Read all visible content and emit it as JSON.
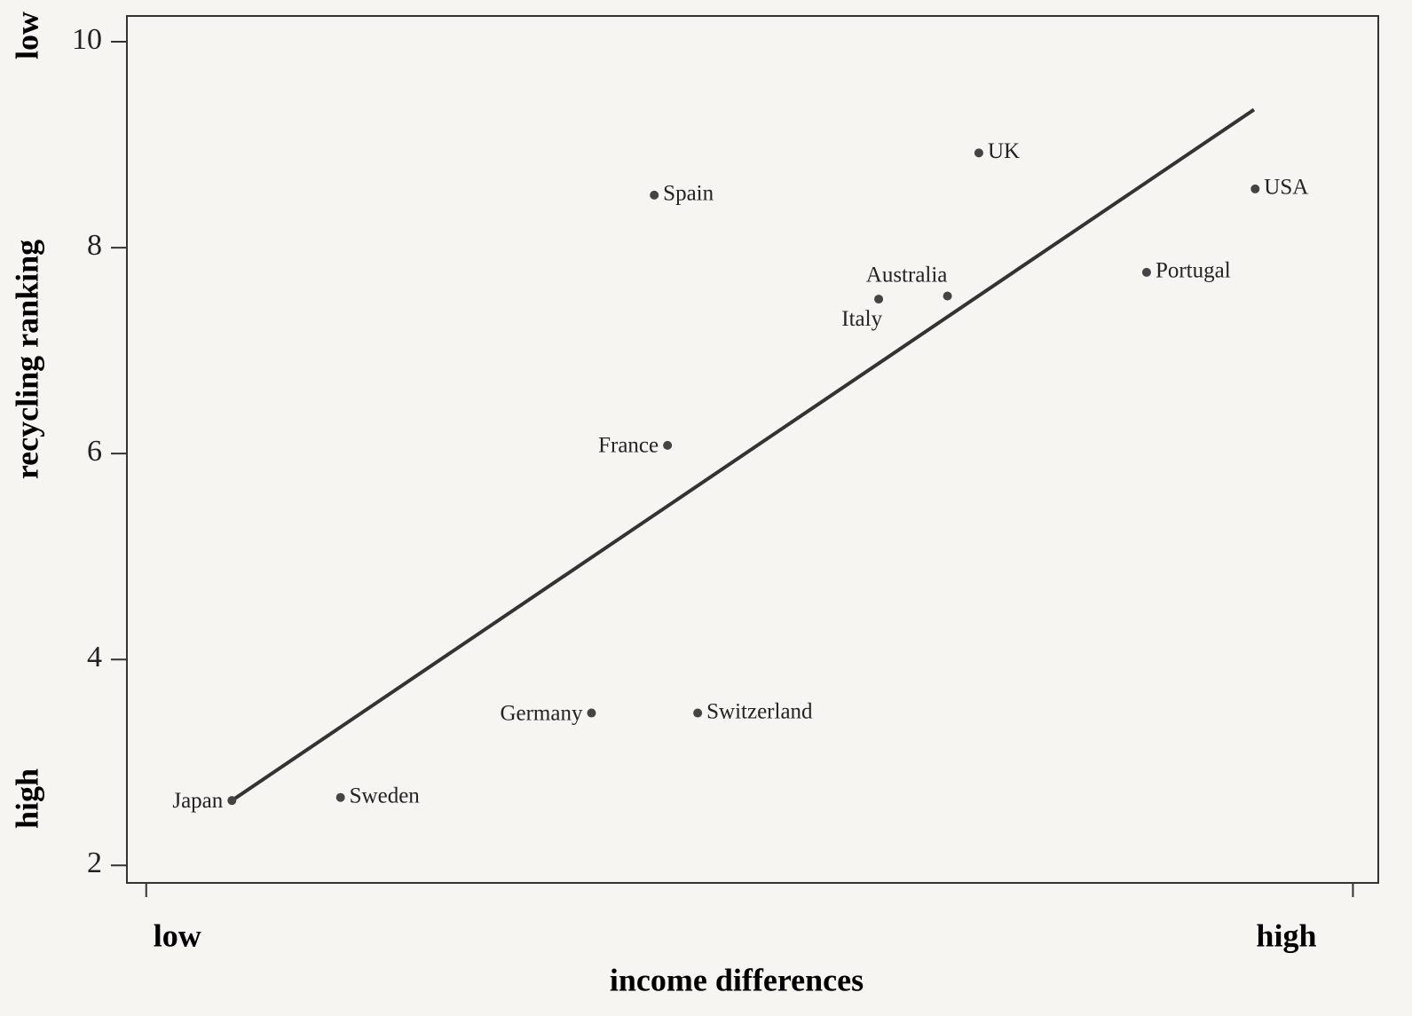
{
  "chart_data": {
    "type": "scatter",
    "x_label": "income differences",
    "y_label": "recycling ranking",
    "y_low_label": "low",
    "y_high_label": "high",
    "xlim": [
      -0.16,
      10.21
    ],
    "xticks": [
      {
        "value": 0,
        "label": "low"
      },
      {
        "value": 10,
        "label": "high"
      }
    ],
    "ylim": [
      1.83,
      10.25
    ],
    "yticks": [
      2,
      4,
      6,
      8,
      10
    ],
    "color": "#444444",
    "points": [
      {
        "label": "Japan",
        "x": 0.71,
        "y": 2.63
      },
      {
        "label": "Sweden",
        "x": 1.61,
        "y": 2.66
      },
      {
        "label": "Germany",
        "x": 3.69,
        "y": 3.48
      },
      {
        "label": "Switzerland",
        "x": 4.57,
        "y": 3.48
      },
      {
        "label": "France",
        "x": 4.32,
        "y": 6.08
      },
      {
        "label": "Spain",
        "x": 4.21,
        "y": 8.51
      },
      {
        "label": "Italy",
        "x": 6.07,
        "y": 7.5
      },
      {
        "label": "Australia",
        "x": 6.64,
        "y": 7.53
      },
      {
        "label": "UK",
        "x": 6.9,
        "y": 8.92
      },
      {
        "label": "Portugal",
        "x": 8.29,
        "y": 7.76
      },
      {
        "label": "USA",
        "x": 9.19,
        "y": 8.57
      }
    ],
    "trend_line": {
      "x": [
        0.71,
        9.18
      ],
      "y": [
        2.63,
        9.34
      ]
    }
  }
}
